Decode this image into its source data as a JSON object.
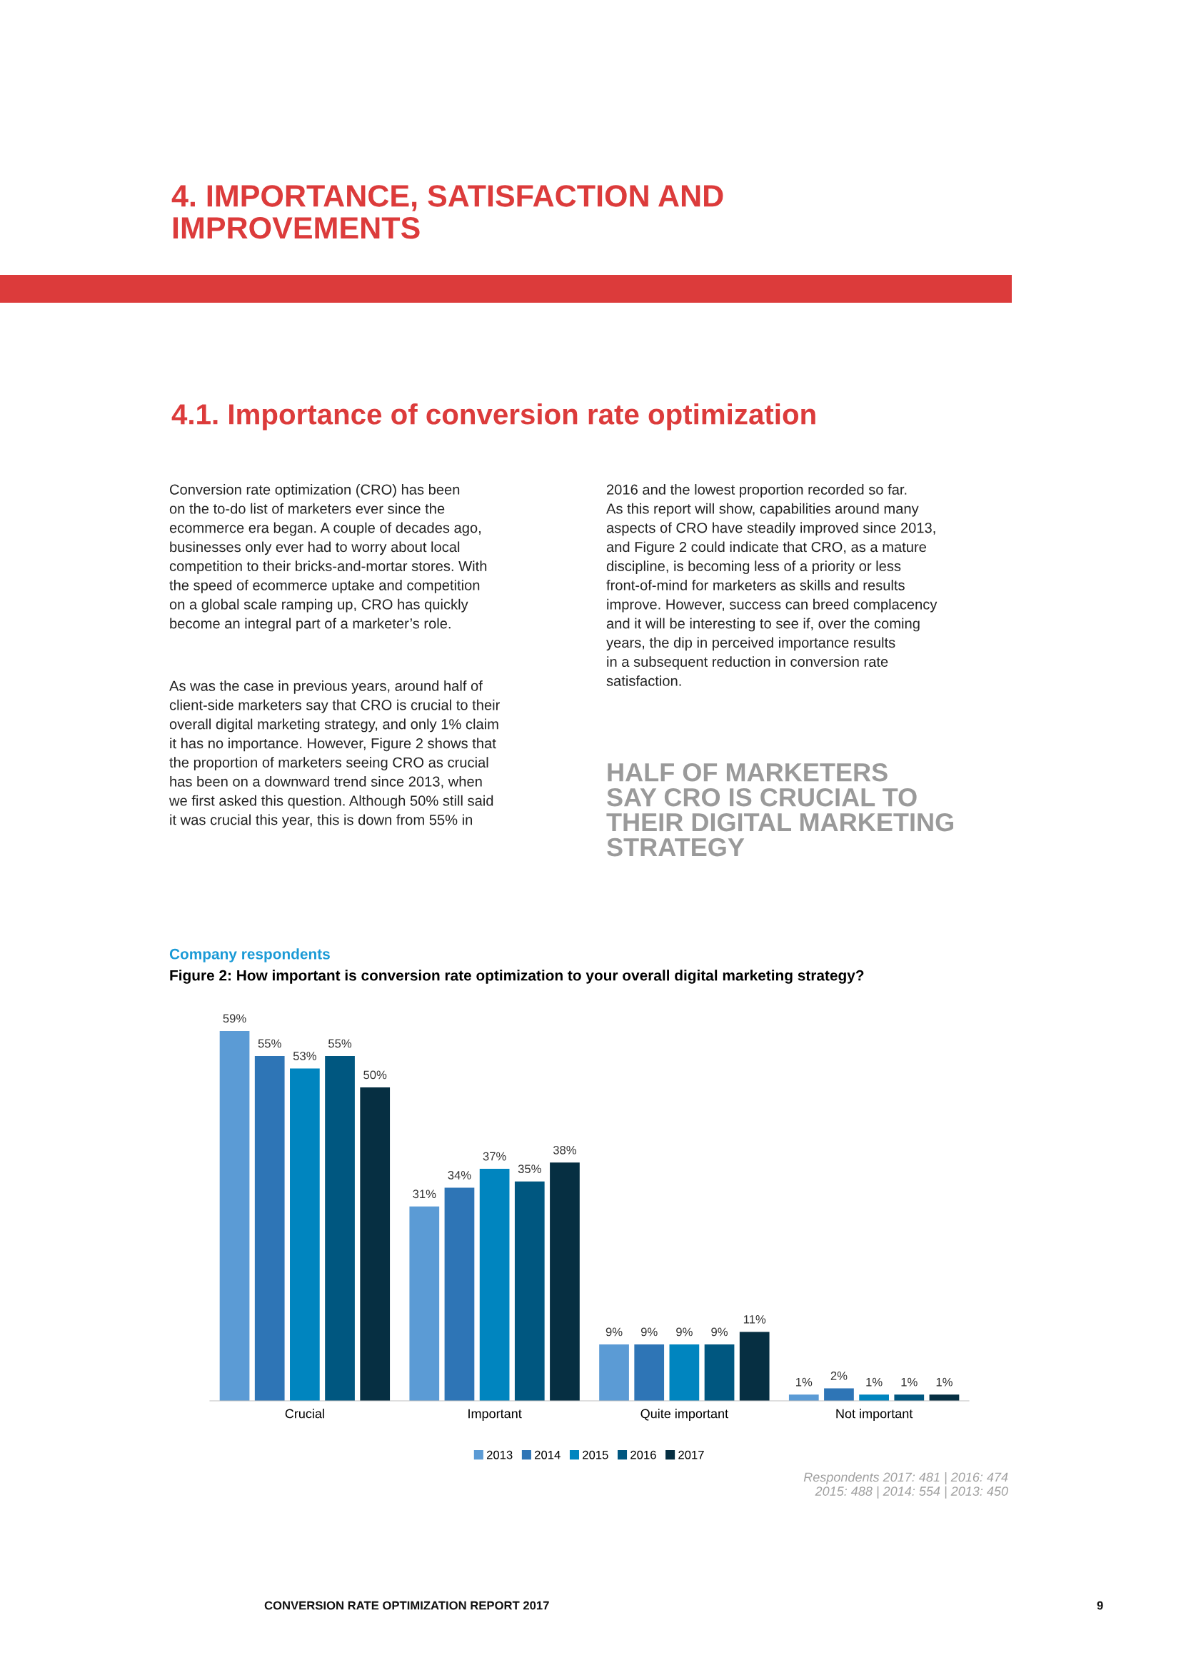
{
  "chart_data": {
    "type": "bar",
    "subtitle": "Company respondents",
    "title": "Figure 2: How important is conversion rate optimization to your overall digital marketing strategy?",
    "categories": [
      "Crucial",
      "Important",
      "Quite important",
      "Not important"
    ],
    "series": [
      {
        "name": "2013",
        "color": "#5b9bd5",
        "values": [
          59,
          31,
          9,
          1
        ],
        "value_labels": [
          "59%",
          "31%",
          "9%",
          "1%"
        ]
      },
      {
        "name": "2014",
        "color": "#2e75b6",
        "values": [
          55,
          34,
          9,
          2
        ],
        "value_labels": [
          "55%",
          "34%",
          "9%",
          "2%"
        ]
      },
      {
        "name": "2015",
        "color": "#0085bf",
        "values": [
          53,
          37,
          9,
          1
        ],
        "value_labels": [
          "53%",
          "37%",
          "9%",
          "1%"
        ]
      },
      {
        "name": "2016",
        "color": "#005780",
        "values": [
          55,
          35,
          9,
          1
        ],
        "value_labels": [
          "55%",
          "35%",
          "9%",
          "1%"
        ]
      },
      {
        "name": "2017",
        "color": "#062f42",
        "values": [
          50,
          38,
          11,
          1
        ],
        "value_labels": [
          "50%",
          "38%",
          "11%",
          "1%"
        ]
      }
    ],
    "legend": "bottom",
    "grid": false,
    "annotations": [
      "4. IMPORTANCE, SATISFACTION AND\nIMPROVEMENTS",
      "4.1. Importance of conversion rate optimization",
      "Conversion rate optimization (CRO) has been\non the to-do list of marketers ever since the\necommerce era began. A couple of decades ago,\nbusinesses only ever had to worry about local\ncompetition to their bricks-and-mortar stores. With\nthe speed of ecommerce uptake and competition\non a global scale ramping up, CRO has quickly\nbecome an integral part of a marketer’s role.",
      "As was the case in previous years, around half of\nclient-side marketers say that CRO is crucial to their\noverall digital marketing strategy, and only 1% claim\nit has no importance. However, Figure 2 shows that\nthe proportion of marketers seeing CRO as crucial\nhas been on a downward trend since 2013, when\nwe first asked this question. Although 50% still said\nit was crucial this year, this is down from 55% in",
      "2016 and the lowest proportion recorded so far.\nAs this report will show, capabilities around many\naspects of CRO have steadily improved since 2013,\nand Figure 2 could indicate that CRO, as a mature\ndiscipline, is becoming less of a priority or less\nfront-of-mind for marketers as skills and results\nimprove. However, success can breed complacency\nand it will be interesting to see if, over the coming\nyears, the dip in perceived importance results\nin a subsequent reduction in conversion rate\nsatisfaction.",
      "HALF OF MARKETERS\nSAY CRO IS CRUCIAL TO\nTHEIR DIGITAL MARKETING\nSTRATEGY",
      "Respondents 2017: 481 | 2016: 474\n2015: 488 | 2014: 554 | 2013: 450",
      "CONVERSION RATE OPTIMIZATION REPORT 2017",
      "9"
    ]
  }
}
